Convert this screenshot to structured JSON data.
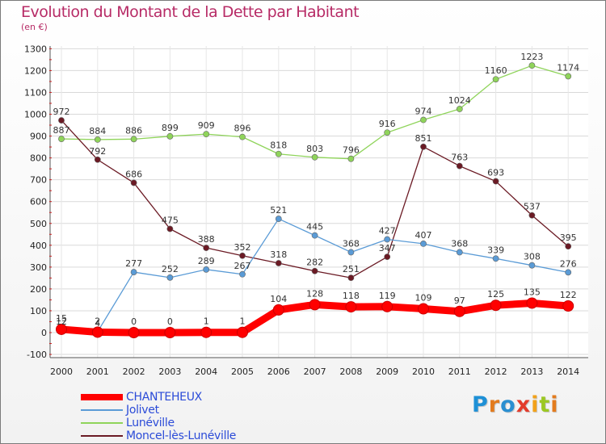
{
  "title": "Evolution du Montant de la Dette par Habitant",
  "unit_label": "(en €)",
  "logo_text": "Proxiti",
  "chart_data": {
    "type": "line",
    "title": "Evolution du Montant de la Dette par Habitant",
    "ylabel": "(en €)",
    "xlabel": "",
    "ylim": [
      -100,
      1300
    ],
    "yticks": [
      -100,
      0,
      100,
      200,
      300,
      400,
      500,
      600,
      700,
      800,
      900,
      1000,
      1100,
      1200,
      1300
    ],
    "x": [
      "2000",
      "2001",
      "2002",
      "2003",
      "2004",
      "2005",
      "2006",
      "2007",
      "2008",
      "2009",
      "2010",
      "2011",
      "2012",
      "2013",
      "2014"
    ],
    "grid": true,
    "legend_position": "bottom-left",
    "series": [
      {
        "name": "Lunéville",
        "color": "#8fd45a",
        "values": [
          887,
          884,
          886,
          899,
          909,
          896,
          818,
          803,
          796,
          916,
          974,
          1024,
          1160,
          1223,
          1174
        ]
      },
      {
        "name": "Moncel-lès-Lunéville",
        "color": "#6b1a24",
        "values": [
          972,
          792,
          686,
          475,
          388,
          352,
          318,
          282,
          251,
          347,
          851,
          763,
          693,
          537,
          395
        ]
      },
      {
        "name": "Jolivet",
        "color": "#5a9bd6",
        "values": [
          12,
          4,
          277,
          252,
          289,
          267,
          521,
          445,
          368,
          427,
          407,
          368,
          339,
          308,
          276
        ]
      },
      {
        "name": "CHANTEHEUX",
        "color": "#ff0000",
        "values": [
          15,
          2,
          0,
          0,
          1,
          1,
          104,
          128,
          118,
          119,
          109,
          97,
          125,
          135,
          122
        ]
      }
    ]
  },
  "legend": [
    {
      "label": "CHANTEHEUX",
      "color": "#ff0000",
      "thick": true
    },
    {
      "label": "Jolivet",
      "color": "#5a9bd6",
      "thick": false
    },
    {
      "label": "Lunéville",
      "color": "#8fd45a",
      "thick": false
    },
    {
      "label": "Moncel-lès-Lunéville",
      "color": "#6b1a24",
      "thick": false
    }
  ]
}
